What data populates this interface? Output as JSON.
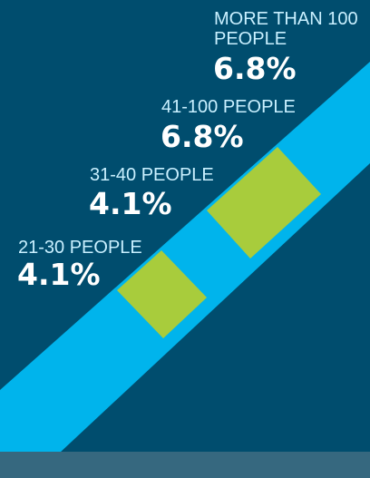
{
  "chart_data": {
    "type": "bar",
    "categories": [
      "21-30 PEOPLE",
      "31-40 PEOPLE",
      "41-100 PEOPLE",
      "MORE THAN 100 PEOPLE"
    ],
    "category_label_lines": [
      [
        "21-30 PEOPLE"
      ],
      [
        "31-40 PEOPLE"
      ],
      [
        "41-100 PEOPLE"
      ],
      [
        "MORE THAN 100",
        "PEOPLE"
      ]
    ],
    "values": [
      4.1,
      4.1,
      6.8,
      6.8
    ],
    "value_labels": [
      "4.1%",
      "4.1%",
      "6.8%",
      "6.8%"
    ],
    "unit": "%",
    "colors": {
      "background": "#004d6e",
      "band": "#00b4ec",
      "highlight": "#a8cc3c",
      "footer": "#36687f",
      "category_text": "#c9f0ff",
      "value_text": "#ffffff"
    }
  }
}
